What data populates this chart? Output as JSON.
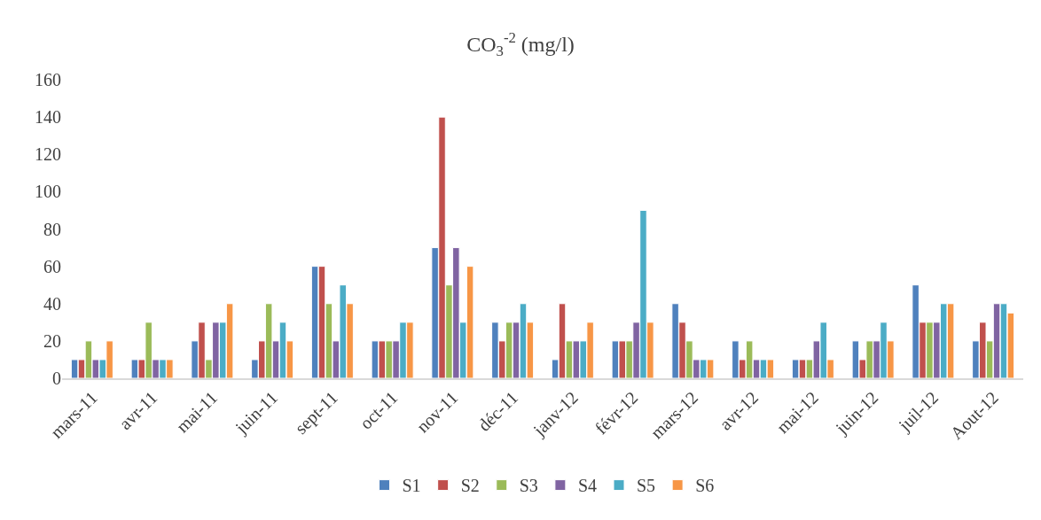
{
  "chart_data": {
    "type": "bar",
    "title": "CO$_{3}$$^{-2}$ (mg/l)",
    "categories": [
      "mars-11",
      "avr-11",
      "mai-11",
      "juin-11",
      "sept-11",
      "oct-11",
      "nov-11",
      "déc-11",
      "janv-12",
      "févr-12",
      "mars-12",
      "avr-12",
      "mai-12",
      "juin-12",
      "juil-12",
      "Aout-12"
    ],
    "series": [
      {
        "name": "S1",
        "color": "#4f81bd",
        "values": [
          10,
          10,
          20,
          10,
          60,
          20,
          70,
          30,
          10,
          20,
          40,
          20,
          10,
          20,
          50,
          20
        ]
      },
      {
        "name": "S2",
        "color": "#c0504d",
        "values": [
          10,
          10,
          30,
          20,
          60,
          20,
          140,
          20,
          40,
          20,
          30,
          10,
          10,
          10,
          30,
          30
        ]
      },
      {
        "name": "S3",
        "color": "#9bbb59",
        "values": [
          20,
          30,
          10,
          40,
          40,
          20,
          50,
          30,
          20,
          20,
          20,
          20,
          10,
          20,
          30,
          20
        ]
      },
      {
        "name": "S4",
        "color": "#8064a2",
        "values": [
          10,
          10,
          30,
          20,
          20,
          20,
          70,
          30,
          20,
          30,
          10,
          10,
          20,
          20,
          30,
          40
        ]
      },
      {
        "name": "S5",
        "color": "#4bacc6",
        "values": [
          10,
          10,
          30,
          30,
          50,
          30,
          30,
          40,
          20,
          90,
          10,
          10,
          30,
          30,
          40,
          40
        ]
      },
      {
        "name": "S6",
        "color": "#f79646",
        "values": [
          20,
          10,
          40,
          20,
          40,
          30,
          60,
          30,
          30,
          30,
          10,
          10,
          10,
          20,
          40,
          35
        ]
      }
    ],
    "ylim": [
      0,
      160
    ],
    "yticks": [
      0,
      20,
      40,
      60,
      80,
      100,
      120,
      140,
      160
    ],
    "grid": false,
    "legend": "bottom"
  }
}
